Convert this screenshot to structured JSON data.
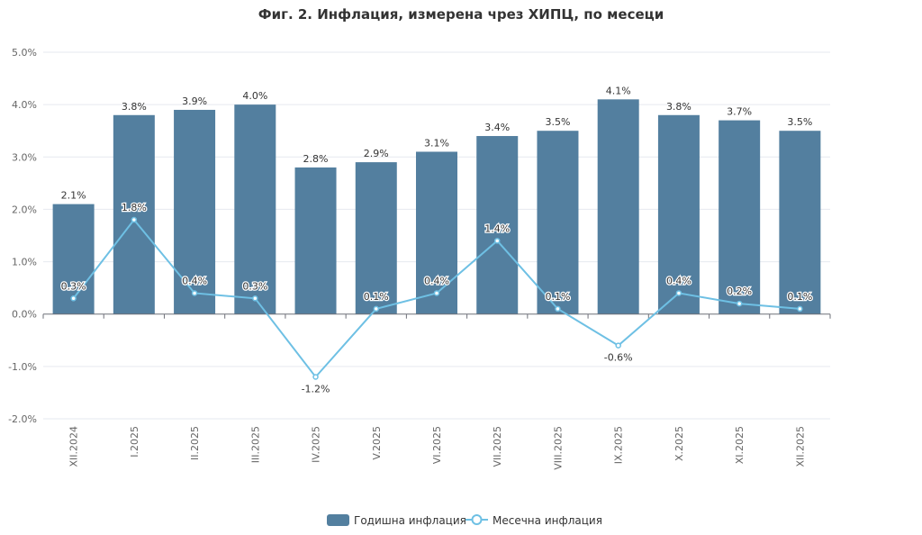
{
  "chart_data": {
    "type": "bar",
    "title": "Фиг. 2. Инфлация, измерена чрез ХИПЦ, по месеци",
    "categories": [
      "XII.2024",
      "I.2025",
      "II.2025",
      "III.2025",
      "IV.2025",
      "V.2025",
      "VI.2025",
      "VII.2025",
      "VIII.2025",
      "IX.2025",
      "X.2025",
      "XI.2025",
      "XII.2025"
    ],
    "series": [
      {
        "name": "Годишна инфлация",
        "type": "bar",
        "color": "#537f9f",
        "values": [
          2.1,
          3.8,
          3.9,
          4.0,
          2.8,
          2.9,
          3.1,
          3.4,
          3.5,
          4.1,
          3.8,
          3.7,
          3.5
        ]
      },
      {
        "name": "Месечна инфлация",
        "type": "line",
        "color": "#6ec0e4",
        "values": [
          0.3,
          1.8,
          0.4,
          0.3,
          -1.2,
          0.1,
          0.4,
          1.4,
          0.1,
          -0.6,
          0.4,
          0.2,
          0.1
        ]
      }
    ],
    "ylim": [
      -2.0,
      5.0
    ],
    "yticks": [
      -2.0,
      -1.0,
      0.0,
      1.0,
      2.0,
      3.0,
      4.0,
      5.0
    ],
    "ytick_suffix": "%",
    "xlabel": "",
    "ylabel": "",
    "grid": true,
    "legend": "bottom-center"
  }
}
